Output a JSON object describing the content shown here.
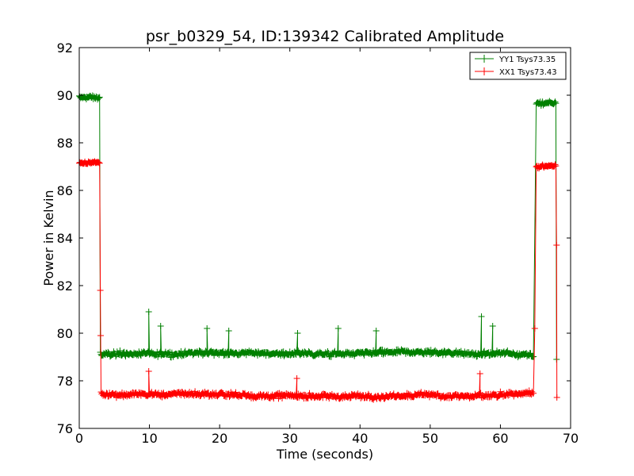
{
  "chart_data": {
    "type": "line",
    "title": "psr_b0329_54, ID:139342 Calibrated Amplitude",
    "xlabel": "Time (seconds)",
    "ylabel": "Power in Kelvin",
    "xlim": [
      0,
      70
    ],
    "ylim": [
      76,
      92
    ],
    "xticks": [
      0,
      10,
      20,
      30,
      40,
      50,
      60,
      70
    ],
    "yticks": [
      76,
      78,
      80,
      82,
      84,
      86,
      88,
      90,
      92
    ],
    "legend_position": "upper-right",
    "series": [
      {
        "name": "YY1 Tsys73.35",
        "color": "#008000",
        "marker": "+",
        "segments": [
          {
            "x_start": 0.0,
            "x_end": 2.9,
            "base": 89.9,
            "noise": 0.12
          },
          {
            "x_start": 3.1,
            "x_end": 64.7,
            "base": 79.1,
            "noise": 0.15
          },
          {
            "x_start": 65.1,
            "x_end": 67.9,
            "base": 89.65,
            "noise": 0.1
          }
        ],
        "spikes": [
          {
            "x": 9.9,
            "y": 80.9
          },
          {
            "x": 11.6,
            "y": 80.3
          },
          {
            "x": 18.2,
            "y": 80.2
          },
          {
            "x": 21.3,
            "y": 80.1
          },
          {
            "x": 31.1,
            "y": 80.0
          },
          {
            "x": 36.9,
            "y": 80.2
          },
          {
            "x": 42.3,
            "y": 80.1
          },
          {
            "x": 57.3,
            "y": 80.7
          },
          {
            "x": 58.9,
            "y": 80.3
          }
        ],
        "drops": [
          {
            "x": 3.0,
            "y": 79.2
          },
          {
            "x": 68.0,
            "y": 78.9
          }
        ]
      },
      {
        "name": "XX1 Tsys73.43",
        "color": "#ff0000",
        "marker": "+",
        "segments": [
          {
            "x_start": 0.0,
            "x_end": 2.9,
            "base": 87.15,
            "noise": 0.08
          },
          {
            "x_start": 3.1,
            "x_end": 64.7,
            "base": 77.45,
            "noise": 0.15
          },
          {
            "x_start": 65.1,
            "x_end": 67.9,
            "base": 87.0,
            "noise": 0.1
          }
        ],
        "spikes": [
          {
            "x": 9.9,
            "y": 78.4
          },
          {
            "x": 31.0,
            "y": 78.1
          },
          {
            "x": 57.1,
            "y": 78.3
          }
        ],
        "drops": [
          {
            "x": 3.0,
            "y": 81.8
          },
          {
            "x": 3.05,
            "y": 79.9
          },
          {
            "x": 64.9,
            "y": 80.2
          },
          {
            "x": 68.0,
            "y": 83.7
          },
          {
            "x": 68.05,
            "y": 77.3
          }
        ]
      }
    ]
  }
}
